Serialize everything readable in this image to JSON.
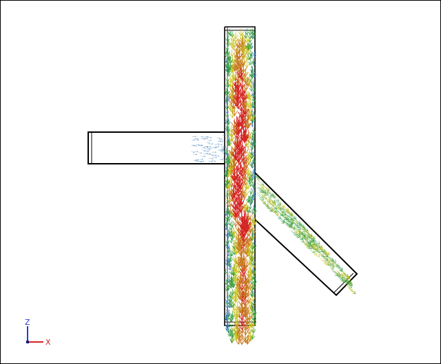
{
  "triad": {
    "z_label": "Z",
    "x_label": "X",
    "z_color": "#2a3bd6",
    "x_color": "#d62020"
  },
  "colors": {
    "background": "#ffffff",
    "outline": "#000000",
    "vector_high": "#d42424",
    "vector_mid": "#c8781e",
    "vector_low_mid": "#c8c21e",
    "vector_low": "#2e9b3a",
    "vector_min": "#2a6fb0"
  },
  "icons": {
    "triad": "axis-triad-icon"
  }
}
